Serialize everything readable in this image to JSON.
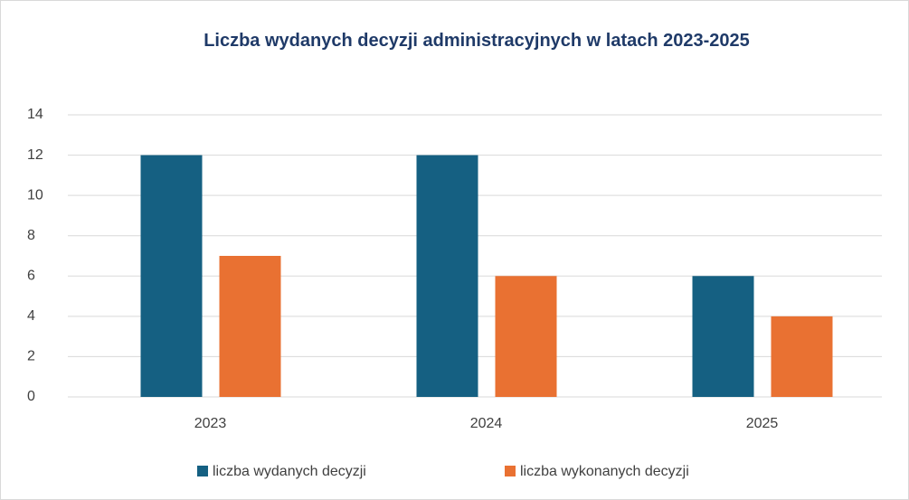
{
  "chart_data": {
    "type": "bar",
    "title": "Liczba wydanych decyzji administracyjnych w latach 2023-2025",
    "categories": [
      "2023",
      "2024",
      "2025"
    ],
    "series": [
      {
        "name": "liczba wydanych decyzji",
        "color": "#156082",
        "values": [
          12,
          12,
          6
        ]
      },
      {
        "name": "liczba wykonanych decyzji",
        "color": "#e97132",
        "values": [
          7,
          6,
          4
        ]
      }
    ],
    "ylim": [
      0,
      14
    ],
    "yticks": [
      0,
      2,
      4,
      6,
      8,
      10,
      12,
      14
    ],
    "grid": true,
    "legend": "bottom"
  }
}
